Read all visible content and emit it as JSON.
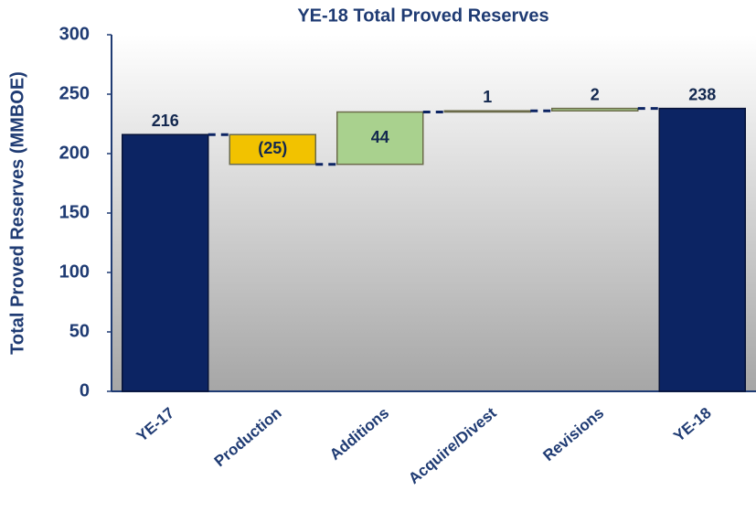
{
  "chart_data": {
    "type": "waterfall",
    "title": "YE-18 Total Proved Reserves",
    "y_label": "Total Proved Reserves (MMBOE)",
    "categories": [
      "YE-17",
      "Production",
      "Additions",
      "Acquire/Divest",
      "Revisions",
      "YE-18"
    ],
    "values": [
      216,
      -25,
      44,
      1,
      2,
      238
    ],
    "value_labels": [
      "216",
      "(25)",
      "44",
      "1",
      "2",
      "238"
    ],
    "totals": [
      true,
      false,
      false,
      false,
      false,
      true
    ],
    "colors": {
      "total": "#0c2463",
      "increase": "#a9d18e",
      "decrease": "#f2c200"
    },
    "ylim": [
      0,
      300
    ],
    "yticks": [
      0,
      50,
      100,
      150,
      200,
      250,
      300
    ]
  }
}
